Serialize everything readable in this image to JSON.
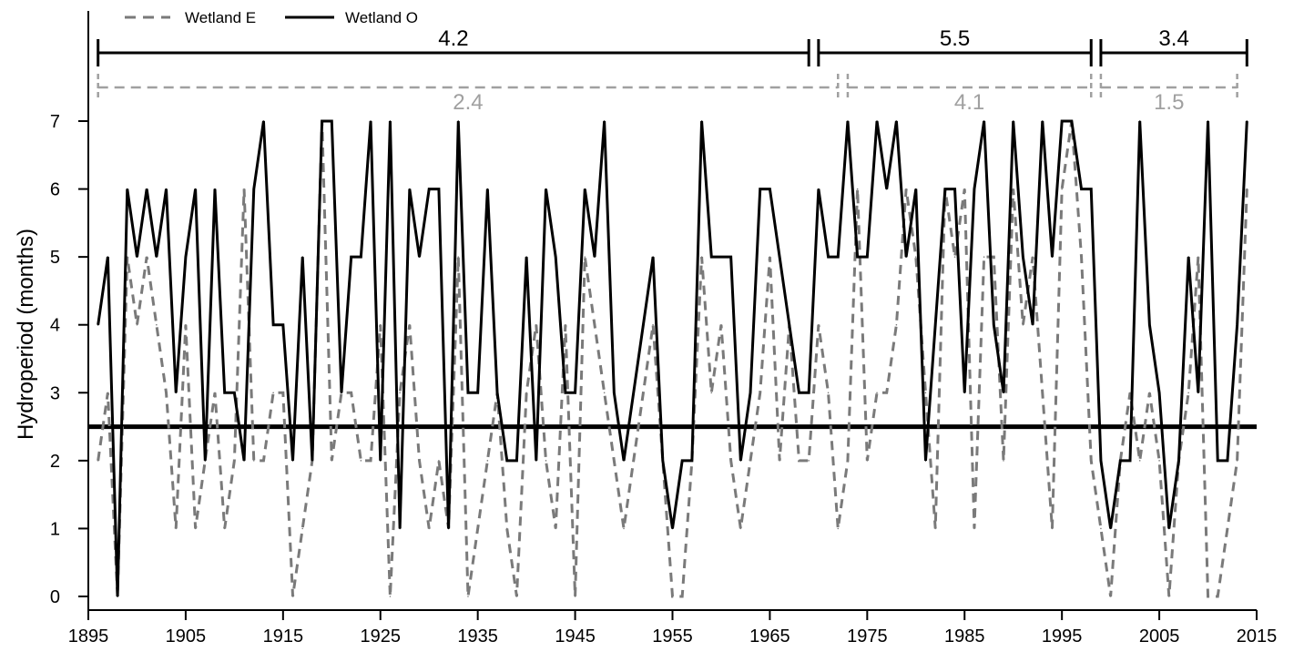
{
  "chart_data": {
    "type": "line",
    "xlabel": "",
    "ylabel": "Hydroperiod (months)",
    "xlim": [
      1895,
      2015
    ],
    "ylim": [
      0,
      7
    ],
    "x_ticks": [
      1895,
      1905,
      1915,
      1925,
      1935,
      1945,
      1955,
      1965,
      1975,
      1985,
      1995,
      2005,
      2015
    ],
    "y_ticks": [
      0,
      1,
      2,
      3,
      4,
      5,
      6,
      7
    ],
    "grid": false,
    "legend_position": "top-left",
    "x": [
      1896,
      1897,
      1898,
      1899,
      1900,
      1901,
      1902,
      1903,
      1904,
      1905,
      1906,
      1907,
      1908,
      1909,
      1910,
      1911,
      1912,
      1913,
      1914,
      1915,
      1916,
      1917,
      1918,
      1919,
      1920,
      1921,
      1922,
      1923,
      1924,
      1925,
      1926,
      1927,
      1928,
      1929,
      1930,
      1931,
      1932,
      1933,
      1934,
      1935,
      1936,
      1937,
      1938,
      1939,
      1940,
      1941,
      1942,
      1943,
      1944,
      1945,
      1946,
      1947,
      1948,
      1949,
      1950,
      1951,
      1952,
      1953,
      1954,
      1955,
      1956,
      1957,
      1958,
      1959,
      1960,
      1961,
      1962,
      1963,
      1964,
      1965,
      1966,
      1967,
      1968,
      1969,
      1970,
      1971,
      1972,
      1973,
      1974,
      1975,
      1976,
      1977,
      1978,
      1979,
      1980,
      1981,
      1982,
      1983,
      1984,
      1985,
      1986,
      1987,
      1988,
      1989,
      1990,
      1991,
      1992,
      1993,
      1994,
      1995,
      1996,
      1997,
      1998,
      1999,
      2000,
      2001,
      2002,
      2003,
      2004,
      2005,
      2006,
      2007,
      2008,
      2009,
      2010,
      2011,
      2012,
      2013,
      2014
    ],
    "series": [
      {
        "name": "Wetland E",
        "color": "#7a7a7a",
        "dash": true,
        "values": [
          2,
          3,
          0,
          5,
          4,
          5,
          4,
          3,
          1,
          4,
          1,
          2,
          3,
          1,
          2,
          6,
          2,
          2,
          3,
          3,
          0,
          1,
          2,
          7,
          2,
          3,
          3,
          2,
          2,
          4,
          0,
          3,
          4,
          2,
          1,
          2,
          1,
          5,
          0,
          1,
          2,
          3,
          1,
          0,
          3,
          4,
          2,
          1,
          4,
          0,
          5,
          4,
          3,
          2,
          1,
          2,
          3,
          4,
          2,
          0,
          0,
          2,
          5,
          3,
          4,
          2,
          1,
          2,
          3,
          5,
          2,
          4,
          2,
          2,
          4,
          3,
          1,
          2,
          6,
          2,
          3,
          3,
          4,
          6,
          5,
          3,
          1,
          6,
          5,
          6,
          1,
          5,
          5,
          2,
          6,
          4,
          5,
          3,
          1,
          6,
          7,
          5,
          2,
          1,
          0,
          2,
          3,
          2,
          3,
          2,
          0,
          2,
          3,
          5,
          0,
          0,
          1,
          2,
          6
        ]
      },
      {
        "name": "Wetland O",
        "color": "#000000",
        "dash": false,
        "values": [
          4,
          5,
          0,
          6,
          5,
          6,
          5,
          6,
          3,
          5,
          6,
          2,
          6,
          3,
          3,
          2,
          6,
          7,
          4,
          4,
          2,
          5,
          2,
          7,
          7,
          3,
          5,
          5,
          7,
          2,
          7,
          1,
          6,
          5,
          6,
          6,
          1,
          7,
          3,
          3,
          6,
          3,
          2,
          2,
          5,
          2,
          6,
          5,
          3,
          3,
          6,
          5,
          7,
          3,
          2,
          3,
          4,
          5,
          2,
          1,
          2,
          2,
          7,
          5,
          5,
          5,
          2,
          3,
          6,
          6,
          5,
          4,
          3,
          3,
          6,
          5,
          5,
          7,
          5,
          5,
          7,
          6,
          7,
          5,
          6,
          2,
          4,
          6,
          6,
          3,
          6,
          7,
          4,
          3,
          7,
          5,
          4,
          7,
          5,
          7,
          7,
          6,
          6,
          2,
          1,
          2,
          2,
          7,
          4,
          3,
          1,
          2,
          5,
          3,
          7,
          2,
          2,
          4,
          7
        ]
      }
    ],
    "reference_line": {
      "y": 2.5,
      "color": "#000000"
    },
    "period_bars": [
      {
        "series": "Wetland O",
        "start": 1896,
        "end": 1969,
        "label": "4.2"
      },
      {
        "series": "Wetland O",
        "start": 1970,
        "end": 1998,
        "label": "5.5"
      },
      {
        "series": "Wetland O",
        "start": 1999,
        "end": 2014,
        "label": "3.4"
      },
      {
        "series": "Wetland E",
        "start": 1896,
        "end": 1972,
        "label": "2.4"
      },
      {
        "series": "Wetland E",
        "start": 1973,
        "end": 1998,
        "label": "4.1"
      },
      {
        "series": "Wetland E",
        "start": 1999,
        "end": 2013,
        "label": "1.5"
      }
    ]
  }
}
